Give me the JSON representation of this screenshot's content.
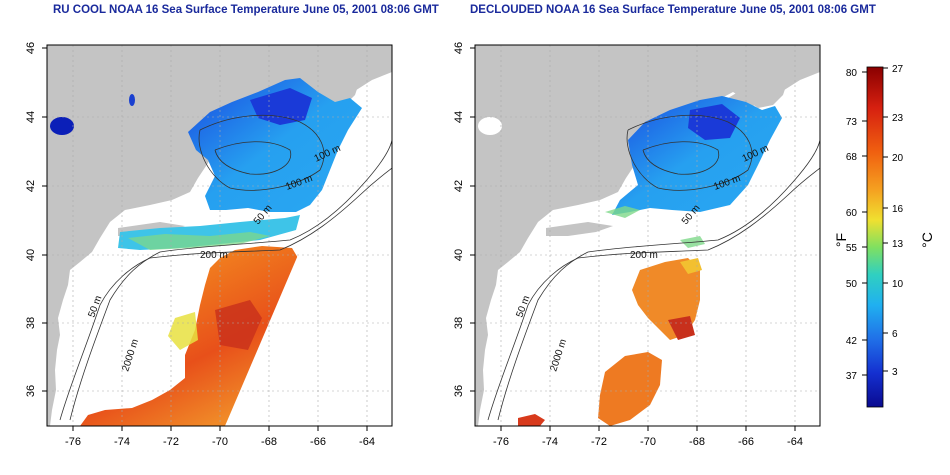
{
  "panels": [
    {
      "title": "RU COOL NOAA 16 Sea Surface Temperature June 05, 2001 08:06 GMT",
      "x_ticks": [
        "-76",
        "-74",
        "-72",
        "-70",
        "-68",
        "-66",
        "-64"
      ],
      "y_ticks": [
        "46",
        "44",
        "42",
        "40",
        "38",
        "36"
      ],
      "contour_labels": [
        "50 m",
        "100 m",
        "100 m",
        "200 m",
        "50 m",
        "2000 m"
      ]
    },
    {
      "title": "DECLOUDED NOAA 16 Sea Surface Temperature June 05, 2001 08:06 GMT",
      "x_ticks": [
        "-76",
        "-74",
        "-72",
        "-70",
        "-68",
        "-66",
        "-64"
      ],
      "y_ticks": [
        "46",
        "44",
        "42",
        "40",
        "38",
        "36"
      ],
      "contour_labels": [
        "50 m",
        "100 m",
        "100 m",
        "200 m",
        "50 m",
        "2000 m"
      ]
    }
  ],
  "colorbar": {
    "f_label": "°F",
    "c_label": "°C",
    "f_ticks": [
      "80",
      "73",
      "68",
      "60",
      "55",
      "50",
      "42",
      "37"
    ],
    "c_ticks": [
      "27",
      "23",
      "20",
      "16",
      "13",
      "10",
      "6",
      "3"
    ]
  },
  "colors": {
    "land": "#c4c4c4",
    "cold": "#0b1fb8",
    "cool": "#2aa8f2",
    "mild": "#40d8d0",
    "warm": "#f0d020",
    "hot": "#f08020",
    "hottest": "#a01010",
    "title": "#1a2a9c"
  }
}
